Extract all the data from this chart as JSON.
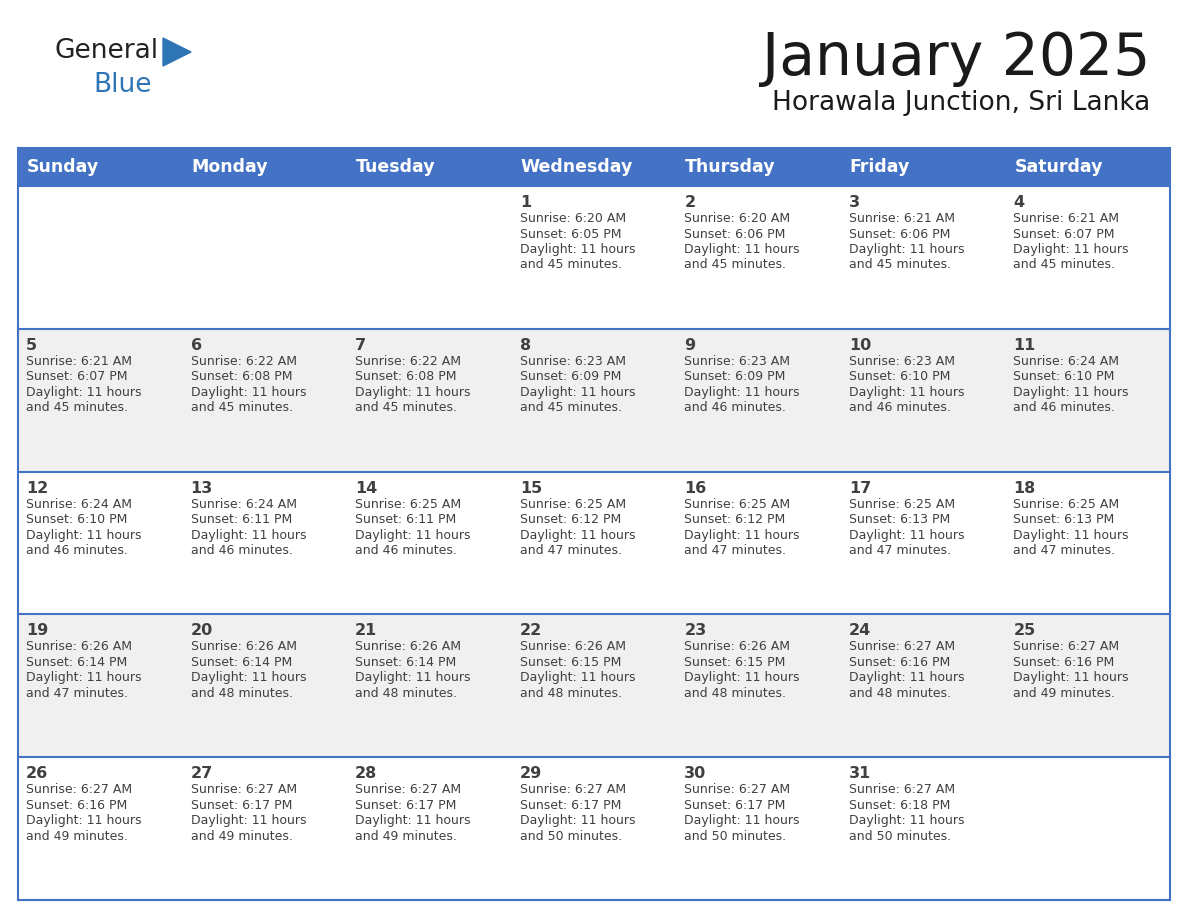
{
  "title": "January 2025",
  "subtitle": "Horawala Junction, Sri Lanka",
  "days_of_week": [
    "Sunday",
    "Monday",
    "Tuesday",
    "Wednesday",
    "Thursday",
    "Friday",
    "Saturday"
  ],
  "header_bg": "#4472C4",
  "header_text": "#FFFFFF",
  "cell_bg_even": "#FFFFFF",
  "cell_bg_odd": "#F0F0F0",
  "row_line_color": "#4472C4",
  "text_color": "#404040",
  "logo_general_color": "#222222",
  "logo_blue_color": "#2E75B6",
  "calendar": [
    [
      {
        "day": "",
        "sunrise": "",
        "sunset": "",
        "daylight_min": ""
      },
      {
        "day": "",
        "sunrise": "",
        "sunset": "",
        "daylight_min": ""
      },
      {
        "day": "",
        "sunrise": "",
        "sunset": "",
        "daylight_min": ""
      },
      {
        "day": "1",
        "sunrise": "6:20 AM",
        "sunset": "6:05 PM",
        "daylight_min": "45"
      },
      {
        "day": "2",
        "sunrise": "6:20 AM",
        "sunset": "6:06 PM",
        "daylight_min": "45"
      },
      {
        "day": "3",
        "sunrise": "6:21 AM",
        "sunset": "6:06 PM",
        "daylight_min": "45"
      },
      {
        "day": "4",
        "sunrise": "6:21 AM",
        "sunset": "6:07 PM",
        "daylight_min": "45"
      }
    ],
    [
      {
        "day": "5",
        "sunrise": "6:21 AM",
        "sunset": "6:07 PM",
        "daylight_min": "45"
      },
      {
        "day": "6",
        "sunrise": "6:22 AM",
        "sunset": "6:08 PM",
        "daylight_min": "45"
      },
      {
        "day": "7",
        "sunrise": "6:22 AM",
        "sunset": "6:08 PM",
        "daylight_min": "45"
      },
      {
        "day": "8",
        "sunrise": "6:23 AM",
        "sunset": "6:09 PM",
        "daylight_min": "45"
      },
      {
        "day": "9",
        "sunrise": "6:23 AM",
        "sunset": "6:09 PM",
        "daylight_min": "46"
      },
      {
        "day": "10",
        "sunrise": "6:23 AM",
        "sunset": "6:10 PM",
        "daylight_min": "46"
      },
      {
        "day": "11",
        "sunrise": "6:24 AM",
        "sunset": "6:10 PM",
        "daylight_min": "46"
      }
    ],
    [
      {
        "day": "12",
        "sunrise": "6:24 AM",
        "sunset": "6:10 PM",
        "daylight_min": "46"
      },
      {
        "day": "13",
        "sunrise": "6:24 AM",
        "sunset": "6:11 PM",
        "daylight_min": "46"
      },
      {
        "day": "14",
        "sunrise": "6:25 AM",
        "sunset": "6:11 PM",
        "daylight_min": "46"
      },
      {
        "day": "15",
        "sunrise": "6:25 AM",
        "sunset": "6:12 PM",
        "daylight_min": "47"
      },
      {
        "day": "16",
        "sunrise": "6:25 AM",
        "sunset": "6:12 PM",
        "daylight_min": "47"
      },
      {
        "day": "17",
        "sunrise": "6:25 AM",
        "sunset": "6:13 PM",
        "daylight_min": "47"
      },
      {
        "day": "18",
        "sunrise": "6:25 AM",
        "sunset": "6:13 PM",
        "daylight_min": "47"
      }
    ],
    [
      {
        "day": "19",
        "sunrise": "6:26 AM",
        "sunset": "6:14 PM",
        "daylight_min": "47"
      },
      {
        "day": "20",
        "sunrise": "6:26 AM",
        "sunset": "6:14 PM",
        "daylight_min": "48"
      },
      {
        "day": "21",
        "sunrise": "6:26 AM",
        "sunset": "6:14 PM",
        "daylight_min": "48"
      },
      {
        "day": "22",
        "sunrise": "6:26 AM",
        "sunset": "6:15 PM",
        "daylight_min": "48"
      },
      {
        "day": "23",
        "sunrise": "6:26 AM",
        "sunset": "6:15 PM",
        "daylight_min": "48"
      },
      {
        "day": "24",
        "sunrise": "6:27 AM",
        "sunset": "6:16 PM",
        "daylight_min": "48"
      },
      {
        "day": "25",
        "sunrise": "6:27 AM",
        "sunset": "6:16 PM",
        "daylight_min": "49"
      }
    ],
    [
      {
        "day": "26",
        "sunrise": "6:27 AM",
        "sunset": "6:16 PM",
        "daylight_min": "49"
      },
      {
        "day": "27",
        "sunrise": "6:27 AM",
        "sunset": "6:17 PM",
        "daylight_min": "49"
      },
      {
        "day": "28",
        "sunrise": "6:27 AM",
        "sunset": "6:17 PM",
        "daylight_min": "49"
      },
      {
        "day": "29",
        "sunrise": "6:27 AM",
        "sunset": "6:17 PM",
        "daylight_min": "50"
      },
      {
        "day": "30",
        "sunrise": "6:27 AM",
        "sunset": "6:17 PM",
        "daylight_min": "50"
      },
      {
        "day": "31",
        "sunrise": "6:27 AM",
        "sunset": "6:18 PM",
        "daylight_min": "50"
      },
      {
        "day": "",
        "sunrise": "",
        "sunset": "",
        "daylight_min": ""
      }
    ]
  ]
}
